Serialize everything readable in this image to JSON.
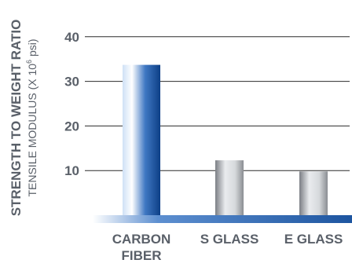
{
  "chart_data": {
    "type": "bar",
    "ylabel": "STRENGTH TO WEIGHT RATIO",
    "ylabel_sub_main": "TENSILE MODULUS  (X 10",
    "ylabel_sub_exp": "6",
    "ylabel_sub_end": " psi)",
    "categories": [
      {
        "lines": [
          "CARBON",
          "FIBER"
        ]
      },
      {
        "lines": [
          "S GLASS"
        ]
      },
      {
        "lines": [
          "E GLASS"
        ]
      }
    ],
    "values": [
      33.7,
      12.3,
      9.8
    ],
    "yticks": [
      10,
      20,
      30,
      40
    ],
    "ylim": [
      0,
      40
    ],
    "grid": true,
    "colors": {
      "axis_base": "#1d55a0",
      "highlight_bar": [
        "#cfe1f6",
        "#ffffff",
        "#3f78c3",
        "#0d3f86"
      ],
      "other_bars": [
        "#7b7e84",
        "#e9ebee",
        "#d6d9dc",
        "#8a8d92"
      ],
      "text": "#5a6069",
      "grid": "#2b2b2b"
    }
  }
}
